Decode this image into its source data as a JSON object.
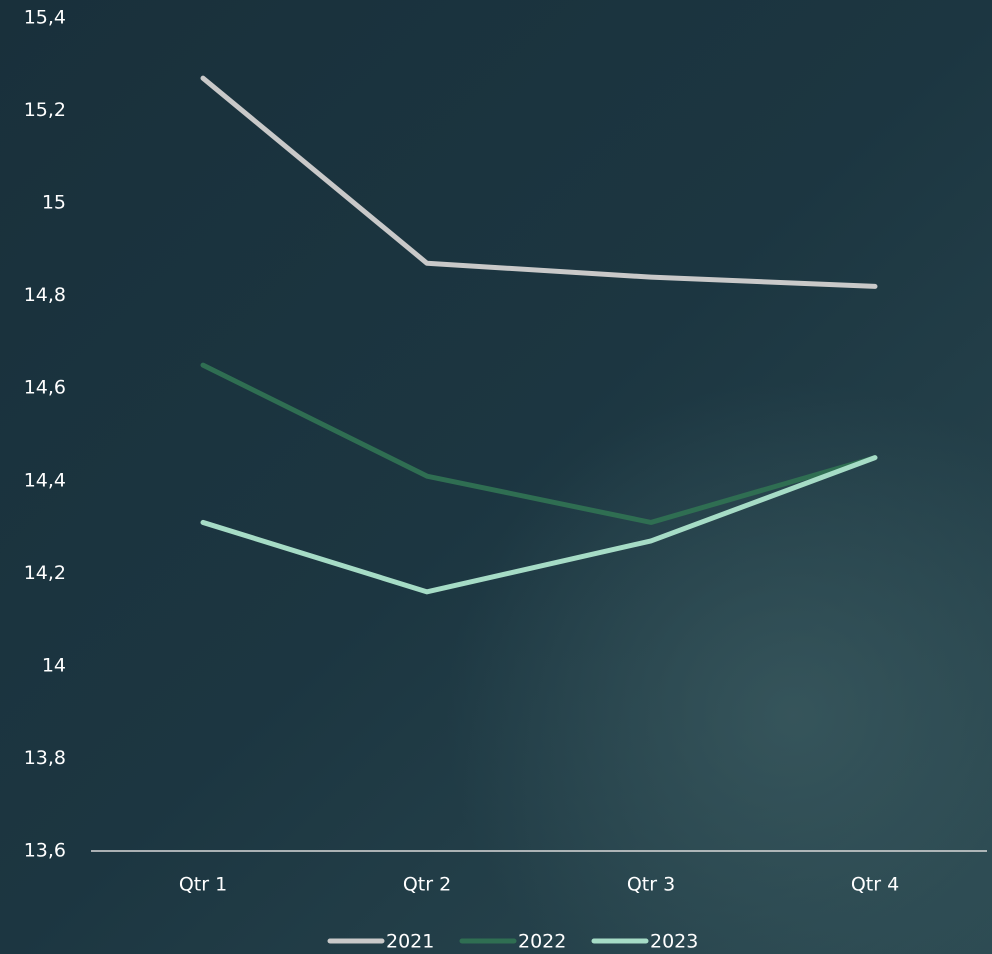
{
  "chart_data": {
    "type": "line",
    "categories": [
      "Qtr 1",
      "Qtr 2",
      "Qtr 3",
      "Qtr 4"
    ],
    "series": [
      {
        "name": "2021",
        "color": "#c9c9c9",
        "values": [
          15.27,
          14.87,
          14.84,
          14.82
        ]
      },
      {
        "name": "2022",
        "color": "#2f6e52",
        "values": [
          14.65,
          14.41,
          14.31,
          14.45
        ]
      },
      {
        "name": "2023",
        "color": "#a6dcc6",
        "values": [
          14.31,
          14.16,
          14.27,
          14.45
        ]
      }
    ],
    "ylim": [
      13.6,
      15.4
    ],
    "yticks": [
      {
        "value": 13.6,
        "label": "13,6"
      },
      {
        "value": 13.8,
        "label": "13,8"
      },
      14,
      {
        "value": 14.2,
        "label": "14,2"
      },
      {
        "value": 14.4,
        "label": "14,4"
      },
      {
        "value": 14.6,
        "label": "14,6"
      },
      {
        "value": 14.8,
        "label": "14,8"
      },
      15,
      {
        "value": 15.2,
        "label": "15,2"
      },
      {
        "value": 15.4,
        "label": "15,4"
      }
    ],
    "grid": false,
    "legend": "bottom"
  }
}
